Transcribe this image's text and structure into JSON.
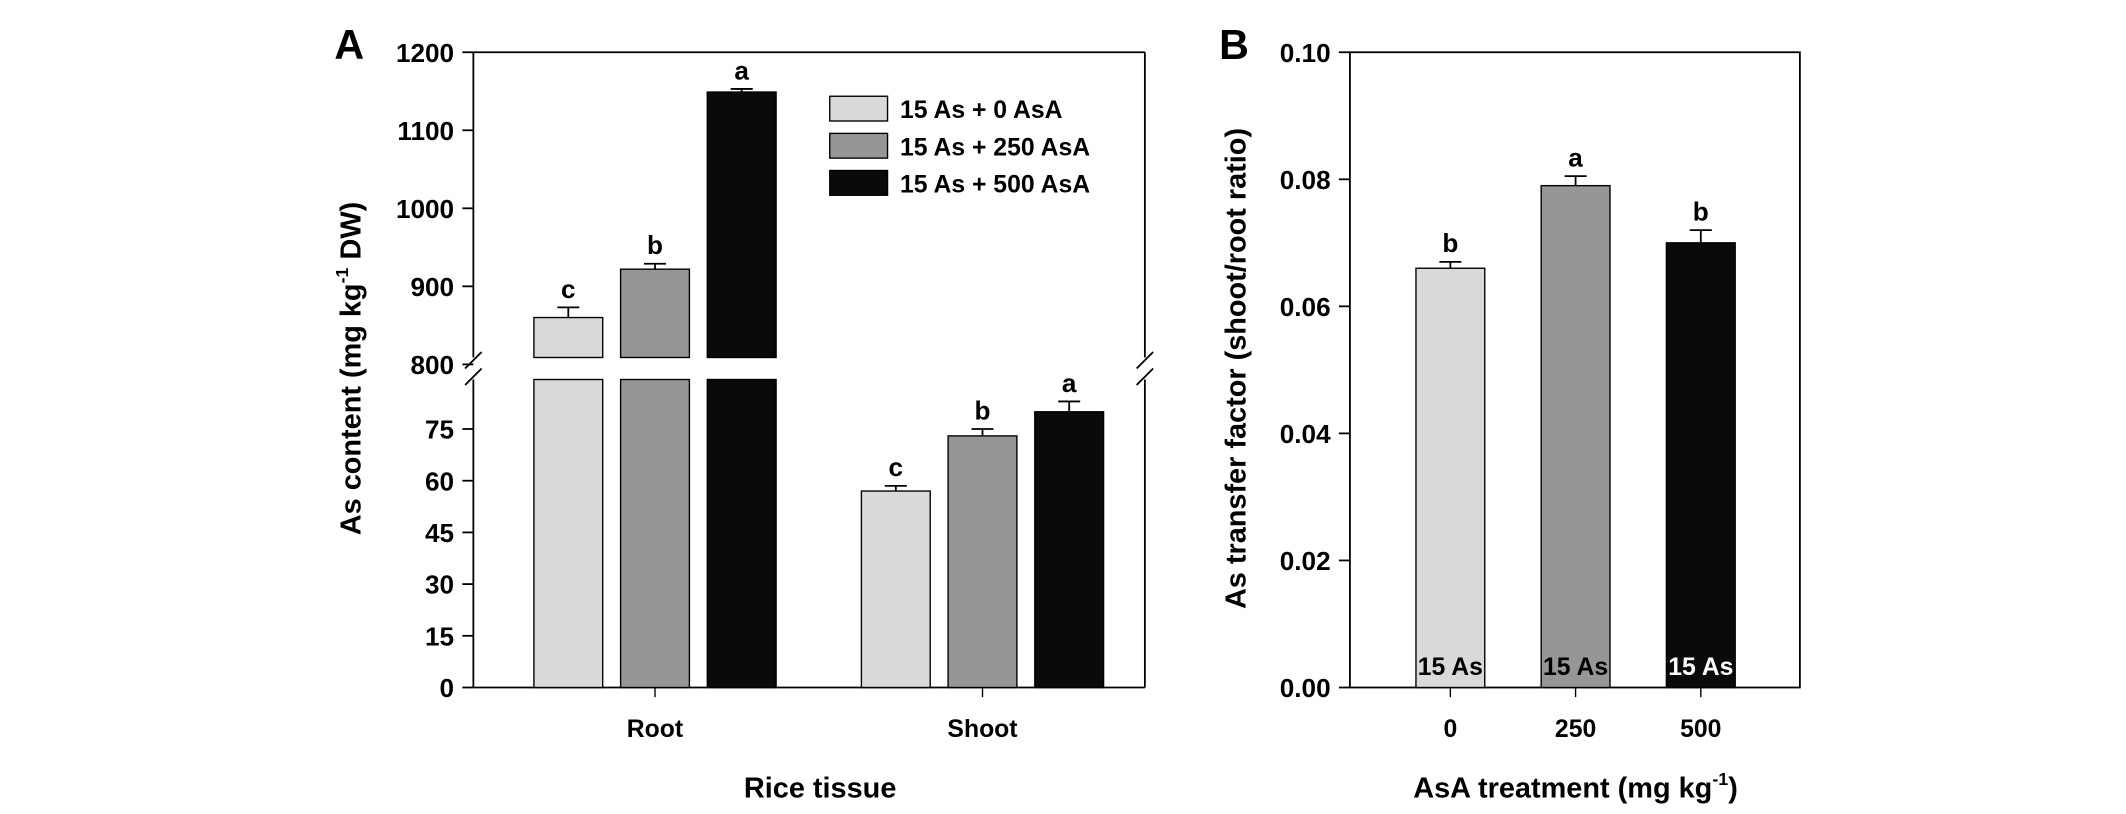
{
  "chart_data": [
    {
      "panel": "A",
      "type": "bar",
      "xlabel": "Rice tissue",
      "ylabel": "As content (mg kg-1 DW)",
      "ylabel_parts": {
        "main": "As content (mg kg",
        "sup": "-1",
        "tail": " DW)"
      },
      "categories": [
        "Root",
        "Shoot"
      ],
      "y_axis_break": true,
      "upper_ylim": [
        800,
        1200
      ],
      "upper_ticks": [
        "800",
        "900",
        "1000",
        "1100",
        "1200"
      ],
      "lower_ylim": [
        0,
        85
      ],
      "lower_ticks": [
        "0",
        "15",
        "30",
        "45",
        "60",
        "75"
      ],
      "legend_position": "top-right",
      "series": [
        {
          "name": "15 As + 0 AsA",
          "color": "#d9d9d9",
          "values": [
            860,
            57
          ],
          "errors": [
            13,
            1.5
          ],
          "letters": [
            "c",
            "c"
          ]
        },
        {
          "name": "15 As + 250 AsA",
          "color": "#969696",
          "values": [
            922,
            73
          ],
          "errors": [
            7,
            2
          ],
          "letters": [
            "b",
            "b"
          ]
        },
        {
          "name": "15 As + 500 AsA",
          "color": "#0a0a0a",
          "values": [
            1149,
            80
          ],
          "errors": [
            4,
            3
          ],
          "letters": [
            "a",
            "a"
          ]
        }
      ]
    },
    {
      "panel": "B",
      "type": "bar",
      "xlabel": "AsA treatment (mg kg-1)",
      "xlabel_parts": {
        "main": "AsA treatment (mg kg",
        "sup": "-1",
        "tail": ")"
      },
      "ylabel": "As transfer factor (shoot/root ratio)",
      "categories": [
        "0",
        "250",
        "500"
      ],
      "ylim": [
        0,
        0.1
      ],
      "yticks": [
        "0.00",
        "0.02",
        "0.04",
        "0.06",
        "0.08",
        "0.10"
      ],
      "values": [
        0.066,
        0.079,
        0.07
      ],
      "errors": [
        0.001,
        0.0015,
        0.002
      ],
      "letters": [
        "b",
        "a",
        "b"
      ],
      "colors": [
        "#d9d9d9",
        "#969696",
        "#0a0a0a"
      ],
      "bar_labels": [
        "15 As",
        "15 As",
        "15 As"
      ],
      "bar_label_colors": [
        "#000000",
        "#000000",
        "#ffffff"
      ]
    }
  ]
}
